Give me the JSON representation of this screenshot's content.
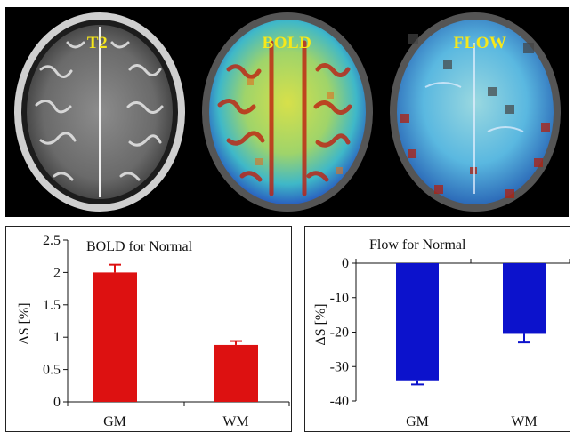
{
  "mri_panels": {
    "t2_label": "T2",
    "bold_label": "BOLD",
    "flow_label": "FLOW"
  },
  "chart_data": [
    {
      "type": "bar",
      "title": "BOLD for Normal",
      "categories": [
        "GM",
        "WM"
      ],
      "values": [
        2.0,
        0.88
      ],
      "errors": [
        0.12,
        0.06
      ],
      "ylabel": "ΔS [%]",
      "xlabel": "",
      "ylim": [
        0,
        2.5
      ],
      "yticks": [
        0,
        0.5,
        1,
        1.5,
        2,
        2.5
      ],
      "ytick_labels": [
        "0",
        "0.5",
        "1",
        "1.5",
        "2",
        "2.5"
      ],
      "color": "#dd1111",
      "grid": false
    },
    {
      "type": "bar",
      "title": "Flow for Normal",
      "categories": [
        "GM",
        "WM"
      ],
      "values": [
        -34,
        -20.5
      ],
      "errors": [
        1.2,
        2.5
      ],
      "ylabel": "ΔS [%]",
      "xlabel": "",
      "ylim": [
        -40,
        0
      ],
      "yticks": [
        0,
        -10,
        -20,
        -30,
        -40
      ],
      "ytick_labels": [
        "0",
        "-10",
        "-20",
        "-30",
        "-40"
      ],
      "color": "#0c12cc",
      "grid": false
    }
  ]
}
